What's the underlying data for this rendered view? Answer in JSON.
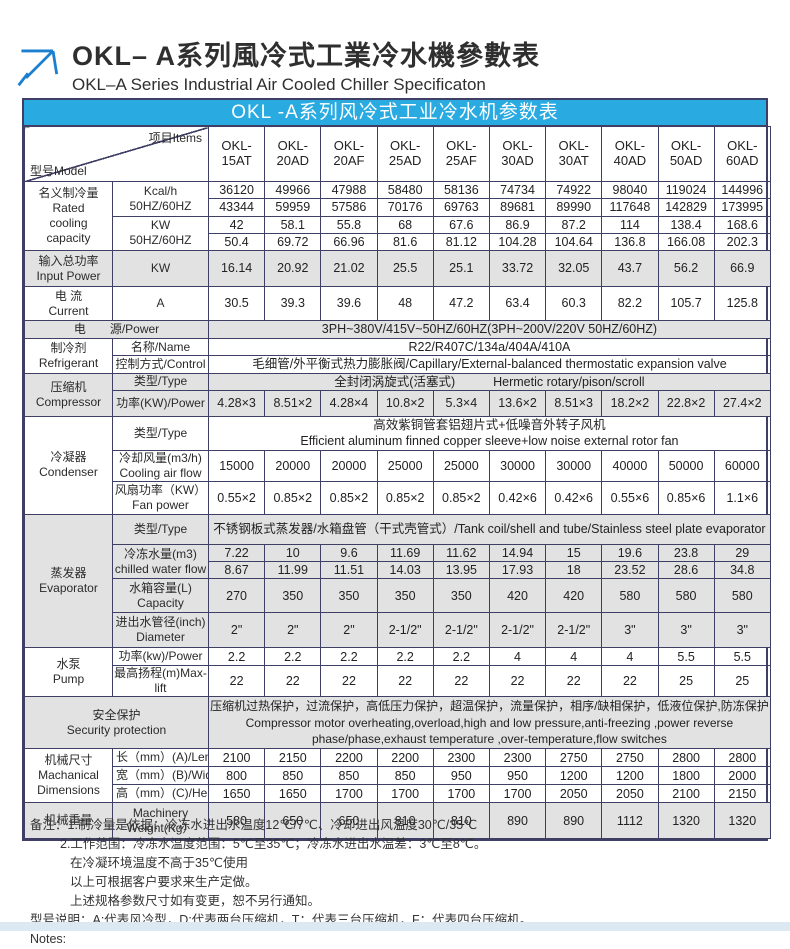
{
  "header": {
    "title_cn": "OKL– A系列風冷式工業冷水機參數表",
    "title_en": "OKL–A Series Industrial Air Cooled Chiller Specificaton"
  },
  "colors": {
    "accent_blue": "#29abe2",
    "border": "#3f3f66",
    "shade_gray": "#e2e2e2"
  },
  "table": {
    "title": "OKL -A系列风冷式工业冷水机参数表",
    "corner": {
      "model": "型号Model",
      "items": "项目Items"
    },
    "models": [
      "OKL-\n15AT",
      "OKL-\n20AD",
      "OKL-\n20AF",
      "OKL-\n25AD",
      "OKL-\n25AF",
      "OKL-\n30AD",
      "OKL-\n30AT",
      "OKL-\n40AD",
      "OKL-\n50AD",
      "OKL-\n60AD"
    ],
    "sections": {
      "rated": {
        "label": "名义制冷量\nRated\ncooling\ncapacity",
        "kcal_label": "Kcal/h\n50HZ/60HZ",
        "kw_label": "KW\n50HZ/60HZ"
      },
      "input_power": {
        "label": "输入总功率\nInput Power",
        "unit": "KW"
      },
      "current": {
        "label": "电 流\nCurrent",
        "unit": "A"
      },
      "power": {
        "label": "电　　源/Power",
        "value": "3PH~380V/415V~50HZ/60HZ(3PH~200V/220V  50HZ/60HZ)"
      },
      "refrigerant": {
        "label": "制冷剂\nRefrigerant",
        "name_label": "名称/Name",
        "name_value": "R22/R407C/134a/404A/410A",
        "control_label": "控制方式/Control",
        "control_value": "毛细管/外平衡式热力膨胀阀/Capillary/External-balanced thermostatic expansion valve"
      },
      "compressor": {
        "label": "压缩机\nCompressor",
        "type_label": "类型/Type",
        "type_cn": "全封闭涡旋式(活塞式)",
        "type_en": "Hermetic rotary/pison/scroll",
        "power_label": "功率(KW)/Power"
      },
      "condenser": {
        "label": "冷凝器\nCondenser",
        "type_label": "类型/Type",
        "type_value": "高效紫铜管套铝翅片式+低噪音外转子风机\nEfficient aluminum finned copper sleeve+low noise external rotor fan",
        "airflow_label": "冷却风量(m3/h)\nCooling air flow",
        "fan_label": "风扇功率（KW）\nFan power"
      },
      "evaporator": {
        "label": "蒸发器\nEvaporator",
        "type_label": "类型/Type",
        "type_value": "不锈钢板式蒸发器/水箱盘管（干式壳管式）/Tank coil/shell and tube/Stainless steel plate evaporator",
        "chilled_label": "冷冻水量(m3)\nchilled water flow",
        "capacity_label": "水箱容量(L)\nCapacity",
        "diameter_label": "进出水管径(inch)\nDiameter"
      },
      "pump": {
        "label": "水泵\nPump",
        "power_label": "功率(kw)/Power",
        "lift_label": "最高扬程(m)Max-lift"
      },
      "security": {
        "label": "安全保护\nSecurity protection",
        "value": "压缩机过热保护，过流保护，高低压力保护，超温保护，流量保护，相序/缺相保护，低液位保护,防冻保护\nCompressor motor overheating,overload,high and low pressure,anti-freezing ,power reverse\nphase/phase,exhaust temperature ,over-temperature,flow switches"
      },
      "dimensions": {
        "label": "机械尺寸\nMachanical\nDimensions",
        "length_label": "长（mm）(A)/Length",
        "width_label": "宽（mm）(B)/Width",
        "height_label": "高（mm）(C)/Height"
      },
      "weight": {
        "label": "机械重量",
        "unit_label": "Machinery\nWeight(Kg）"
      }
    },
    "values": {
      "kcal_50": [
        "36120",
        "49966",
        "47988",
        "58480",
        "58136",
        "74734",
        "74922",
        "98040",
        "119024",
        "144996"
      ],
      "kcal_60": [
        "43344",
        "59959",
        "57586",
        "70176",
        "69763",
        "89681",
        "89990",
        "117648",
        "142829",
        "173995"
      ],
      "kw_50": [
        "42",
        "58.1",
        "55.8",
        "68",
        "67.6",
        "86.9",
        "87.2",
        "114",
        "138.4",
        "168.6"
      ],
      "kw_60": [
        "50.4",
        "69.72",
        "66.96",
        "81.6",
        "81.12",
        "104.28",
        "104.64",
        "136.8",
        "166.08",
        "202.3"
      ],
      "input_power": [
        "16.14",
        "20.92",
        "21.02",
        "25.5",
        "25.1",
        "33.72",
        "32.05",
        "43.7",
        "56.2",
        "66.9"
      ],
      "current": [
        "30.5",
        "39.3",
        "39.6",
        "48",
        "47.2",
        "63.4",
        "60.3",
        "82.2",
        "105.7",
        "125.8"
      ],
      "compressor_power": [
        "4.28×3",
        "8.51×2",
        "4.28×4",
        "10.8×2",
        "5.3×4",
        "13.6×2",
        "8.51×3",
        "18.2×2",
        "22.8×2",
        "27.4×2"
      ],
      "air_flow": [
        "15000",
        "20000",
        "20000",
        "25000",
        "25000",
        "30000",
        "30000",
        "40000",
        "50000",
        "60000"
      ],
      "fan_power": [
        "0.55×2",
        "0.85×2",
        "0.85×2",
        "0.85×2",
        "0.85×2",
        "0.42×6",
        "0.42×6",
        "0.55×6",
        "0.85×6",
        "1.1×6"
      ],
      "chilled_50": [
        "7.22",
        "10",
        "9.6",
        "11.69",
        "11.62",
        "14.94",
        "15",
        "19.6",
        "23.8",
        "29"
      ],
      "chilled_60": [
        "8.67",
        "11.99",
        "11.51",
        "14.03",
        "13.95",
        "17.93",
        "18",
        "23.52",
        "28.6",
        "34.8"
      ],
      "tank_capacity": [
        "270",
        "350",
        "350",
        "350",
        "350",
        "420",
        "420",
        "580",
        "580",
        "580"
      ],
      "pipe_diameter": [
        "2\"",
        "2\"",
        "2\"",
        "2-1/2\"",
        "2-1/2\"",
        "2-1/2\"",
        "2-1/2\"",
        "3\"",
        "3\"",
        "3\""
      ],
      "pump_power": [
        "2.2",
        "2.2",
        "2.2",
        "2.2",
        "2.2",
        "4",
        "4",
        "4",
        "5.5",
        "5.5"
      ],
      "max_lift": [
        "22",
        "22",
        "22",
        "22",
        "22",
        "22",
        "22",
        "22",
        "25",
        "25"
      ],
      "length": [
        "2100",
        "2150",
        "2200",
        "2200",
        "2300",
        "2300",
        "2750",
        "2750",
        "2800",
        "2800"
      ],
      "width": [
        "800",
        "850",
        "850",
        "850",
        "950",
        "950",
        "1200",
        "1200",
        "1800",
        "2000"
      ],
      "height": [
        "1650",
        "1650",
        "1700",
        "1700",
        "1700",
        "1700",
        "2050",
        "2050",
        "2100",
        "2150"
      ],
      "weight": [
        "580",
        "650",
        "650",
        "810",
        "810",
        "890",
        "890",
        "1112",
        "1320",
        "1320"
      ]
    }
  },
  "notes": {
    "lines": [
      "备注：1.制冷量是依据：冷冻水进出水温度12℃/7℃、冷却进出风温度30℃/35℃",
      "2.工作范围：冷冻水温度范围：5℃至35℃；冷冻水进出水温差：3℃至8℃。",
      "在冷凝环境温度不高于35℃使用",
      "以上可根据客户要求来生产定做。",
      "上述规格参数尺寸如有变更，恕不另行通知。",
      "型号说明：A:代表风冷型，D:代表两台压缩机，T：代表三台压缩机，F：代表四台压缩机。",
      "Notes:"
    ]
  }
}
